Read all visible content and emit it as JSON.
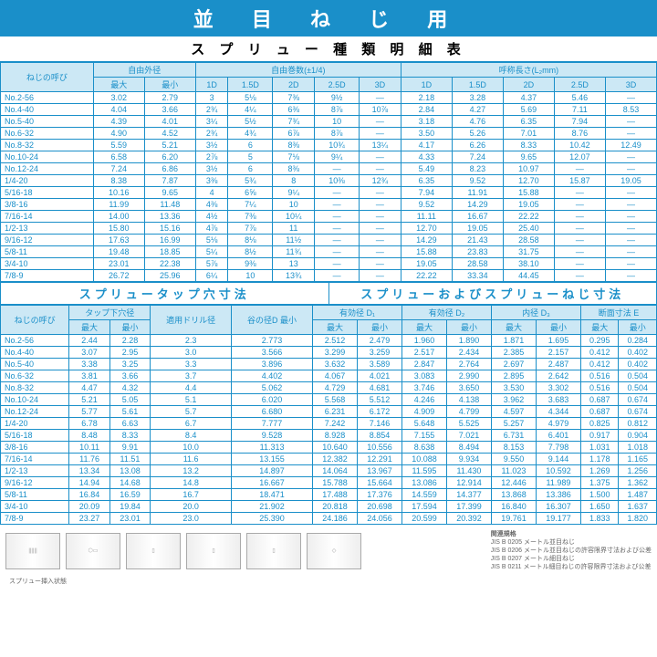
{
  "colors": {
    "primary": "#1a8fc9",
    "header_bg": "#cce8f5",
    "text": "#1a8fc9",
    "bg": "#ffffff"
  },
  "title": "並 目 ね じ 用",
  "subtitle": "ス プ リ ュ ー 種 類 明 細 表",
  "table1": {
    "col_label": "ねじの呼び",
    "groups": [
      "自由外径",
      "自由巻数(±1/4)",
      "呼称長さ(L₂mm)"
    ],
    "sub1": [
      "最大",
      "最小"
    ],
    "sub2": [
      "1D",
      "1.5D",
      "2D",
      "2.5D",
      "3D"
    ],
    "sub3": [
      "1D",
      "1.5D",
      "2D",
      "2.5D",
      "3D"
    ],
    "rows": [
      [
        "No.2-56",
        "3.02",
        "2.79",
        "3",
        "5⅛",
        "7⅜",
        "9½",
        "—",
        "2.18",
        "3.28",
        "4.37",
        "5.46",
        "—"
      ],
      [
        "No.4-40",
        "4.04",
        "3.66",
        "2¾",
        "4¼",
        "6⅜",
        "8⅞",
        "10⅞",
        "2.84",
        "4.27",
        "5.69",
        "7.11",
        "8.53"
      ],
      [
        "No.5-40",
        "4.39",
        "4.01",
        "3¼",
        "5½",
        "7¾",
        "10",
        "—",
        "3.18",
        "4.76",
        "6.35",
        "7.94",
        "—"
      ],
      [
        "No.6-32",
        "4.90",
        "4.52",
        "2¾",
        "4¾",
        "6⅞",
        "8⅞",
        "—",
        "3.50",
        "5.26",
        "7.01",
        "8.76",
        "—"
      ],
      [
        "No.8-32",
        "5.59",
        "5.21",
        "3½",
        "6",
        "8⅜",
        "10¾",
        "13¼",
        "4.17",
        "6.26",
        "8.33",
        "10.42",
        "12.49"
      ],
      [
        "No.10-24",
        "6.58",
        "6.20",
        "2⅞",
        "5",
        "7⅛",
        "9¼",
        "—",
        "4.33",
        "7.24",
        "9.65",
        "12.07",
        "—"
      ],
      [
        "No.12-24",
        "7.24",
        "6.86",
        "3½",
        "6",
        "8⅜",
        "—",
        "—",
        "5.49",
        "8.23",
        "10.97",
        "—",
        "—"
      ],
      [
        "1/4-20",
        "8.38",
        "7.87",
        "3⅜",
        "5¾",
        "8",
        "10⅜",
        "12¾",
        "6.35",
        "9.52",
        "12.70",
        "15.87",
        "19.05"
      ],
      [
        "5/16-18",
        "10.16",
        "9.65",
        "4",
        "6⅝",
        "9¼",
        "—",
        "—",
        "7.94",
        "11.91",
        "15.88",
        "—",
        "—"
      ],
      [
        "3/8-16",
        "11.99",
        "11.48",
        "4⅜",
        "7¼",
        "10",
        "—",
        "—",
        "9.52",
        "14.29",
        "19.05",
        "—",
        "—"
      ],
      [
        "7/16-14",
        "14.00",
        "13.36",
        "4½",
        "7⅜",
        "10¼",
        "—",
        "—",
        "11.11",
        "16.67",
        "22.22",
        "—",
        "—"
      ],
      [
        "1/2-13",
        "15.80",
        "15.16",
        "4⅞",
        "7⅞",
        "11",
        "—",
        "—",
        "12.70",
        "19.05",
        "25.40",
        "—",
        "—"
      ],
      [
        "9/16-12",
        "17.63",
        "16.99",
        "5⅛",
        "8⅛",
        "11½",
        "—",
        "—",
        "14.29",
        "21.43",
        "28.58",
        "—",
        "—"
      ],
      [
        "5/8-11",
        "19.48",
        "18.85",
        "5¼",
        "8½",
        "11¾",
        "—",
        "—",
        "15.88",
        "23.83",
        "31.75",
        "—",
        "—"
      ],
      [
        "3/4-10",
        "23.01",
        "22.38",
        "5⅞",
        "9⅜",
        "13",
        "—",
        "—",
        "19.05",
        "28.58",
        "38.10",
        "—",
        "—"
      ],
      [
        "7/8-9",
        "26.72",
        "25.96",
        "6¼",
        "10",
        "13¾",
        "—",
        "—",
        "22.22",
        "33.34",
        "44.45",
        "—",
        "—"
      ]
    ]
  },
  "mid_left": "スプリュータップ穴寸法",
  "mid_right": "スプリューおよびスプリューねじ寸法",
  "table2": {
    "col_label": "ねじの呼び",
    "groups_left": [
      "タップ下穴径",
      "適用ドリル径",
      "谷の径D 最小",
      "有効径 D₁"
    ],
    "groups_right": [
      "有効径 D₂",
      "内径 D₃",
      "断面寸法 E"
    ],
    "sub_l": [
      "最大",
      "最小"
    ],
    "sub_d1": [
      "最大",
      "最小"
    ],
    "sub_d2": [
      "最大",
      "最小"
    ],
    "sub_d3": [
      "最大",
      "最小"
    ],
    "sub_e": [
      "最大",
      "最小"
    ],
    "rows": [
      [
        "No.2-56",
        "2.44",
        "2.28",
        "2.3",
        "2.773",
        "2.512",
        "2.479",
        "1.960",
        "1.890",
        "1.871",
        "1.695",
        "0.295",
        "0.284"
      ],
      [
        "No.4-40",
        "3.07",
        "2.95",
        "3.0",
        "3.566",
        "3.299",
        "3.259",
        "2.517",
        "2.434",
        "2.385",
        "2.157",
        "0.412",
        "0.402"
      ],
      [
        "No.5-40",
        "3.38",
        "3.25",
        "3.3",
        "3.896",
        "3.632",
        "3.589",
        "2.847",
        "2.764",
        "2.697",
        "2.487",
        "0.412",
        "0.402"
      ],
      [
        "No.6-32",
        "3.81",
        "3.66",
        "3.7",
        "4.402",
        "4.067",
        "4.021",
        "3.083",
        "2.990",
        "2.895",
        "2.642",
        "0.516",
        "0.504"
      ],
      [
        "No.8-32",
        "4.47",
        "4.32",
        "4.4",
        "5.062",
        "4.729",
        "4.681",
        "3.746",
        "3.650",
        "3.530",
        "3.302",
        "0.516",
        "0.504"
      ],
      [
        "No.10-24",
        "5.21",
        "5.05",
        "5.1",
        "6.020",
        "5.568",
        "5.512",
        "4.246",
        "4.138",
        "3.962",
        "3.683",
        "0.687",
        "0.674"
      ],
      [
        "No.12-24",
        "5.77",
        "5.61",
        "5.7",
        "6.680",
        "6.231",
        "6.172",
        "4.909",
        "4.799",
        "4.597",
        "4.344",
        "0.687",
        "0.674"
      ],
      [
        "1/4-20",
        "6.78",
        "6.63",
        "6.7",
        "7.777",
        "7.242",
        "7.146",
        "5.648",
        "5.525",
        "5.257",
        "4.979",
        "0.825",
        "0.812"
      ],
      [
        "5/16-18",
        "8.48",
        "8.33",
        "8.4",
        "9.528",
        "8.928",
        "8.854",
        "7.155",
        "7.021",
        "6.731",
        "6.401",
        "0.917",
        "0.904"
      ],
      [
        "3/8-16",
        "10.11",
        "9.91",
        "10.0",
        "11.313",
        "10.640",
        "10.556",
        "8.638",
        "8.494",
        "8.153",
        "7.798",
        "1.031",
        "1.018"
      ],
      [
        "7/16-14",
        "11.76",
        "11.51",
        "11.6",
        "13.155",
        "12.382",
        "12.291",
        "10.088",
        "9.934",
        "9.550",
        "9.144",
        "1.178",
        "1.165"
      ],
      [
        "1/2-13",
        "13.34",
        "13.08",
        "13.2",
        "14.897",
        "14.064",
        "13.967",
        "11.595",
        "11.430",
        "11.023",
        "10.592",
        "1.269",
        "1.256"
      ],
      [
        "9/16-12",
        "14.94",
        "14.68",
        "14.8",
        "16.667",
        "15.788",
        "15.664",
        "13.086",
        "12.914",
        "12.446",
        "11.989",
        "1.375",
        "1.362"
      ],
      [
        "5/8-11",
        "16.84",
        "16.59",
        "16.7",
        "18.471",
        "17.488",
        "17.376",
        "14.559",
        "14.377",
        "13.868",
        "13.386",
        "1.500",
        "1.487"
      ],
      [
        "3/4-10",
        "20.09",
        "19.84",
        "20.0",
        "21.902",
        "20.818",
        "20.698",
        "17.594",
        "17.399",
        "16.840",
        "16.307",
        "1.650",
        "1.637"
      ],
      [
        "7/8-9",
        "23.27",
        "23.01",
        "23.0",
        "25.390",
        "24.186",
        "24.056",
        "20.599",
        "20.392",
        "19.761",
        "19.177",
        "1.833",
        "1.820"
      ]
    ]
  },
  "footer": {
    "caption": "スプリュー挿入状態",
    "standards_title": "関連規格",
    "standards": [
      "JIS B 0205 メートル並目ねじ",
      "JIS B 0206 メートル並目ねじの許容限界寸法および公差",
      "JIS B 0207 メートル細目ねじ",
      "JIS B 0211 メートル細目ねじの許容限界寸法および公差"
    ]
  }
}
